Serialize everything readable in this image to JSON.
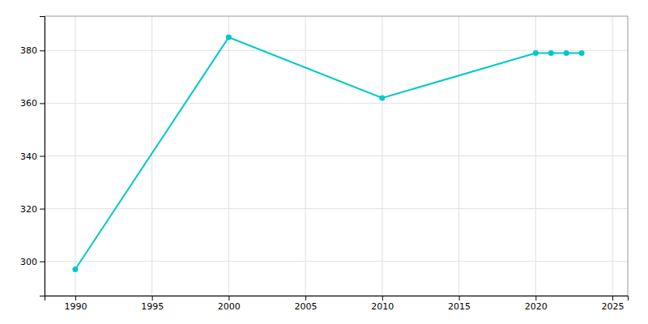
{
  "chart_data": {
    "type": "line",
    "x": [
      1990,
      2000,
      2010,
      2020,
      2021,
      2022,
      2023
    ],
    "values": [
      297,
      385,
      362,
      379,
      379,
      379,
      379
    ],
    "color": "#00C8C8",
    "marker": "circle",
    "xlim": [
      1988,
      2026
    ],
    "ylim": [
      287,
      393
    ],
    "xticks": [
      1990,
      1995,
      2000,
      2005,
      2010,
      2015,
      2020,
      2025
    ],
    "yticks": [
      300,
      320,
      340,
      360,
      380
    ],
    "grid": true
  }
}
